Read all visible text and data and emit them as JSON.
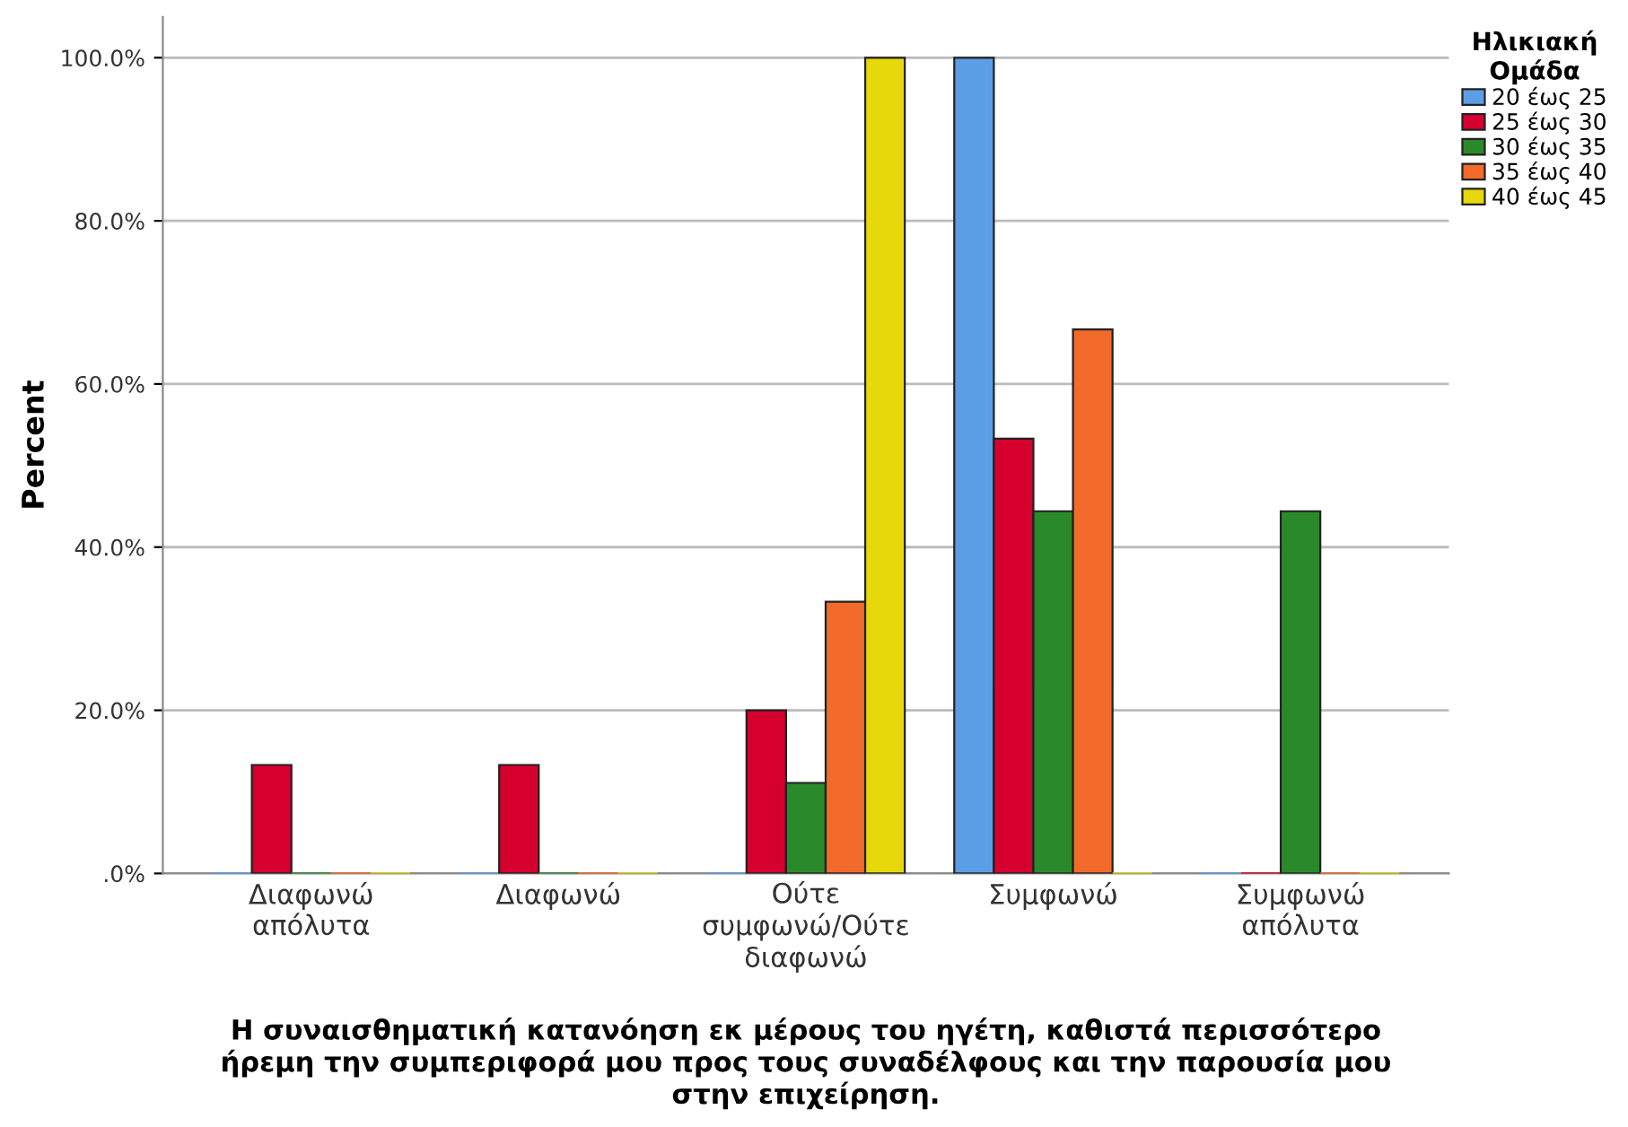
{
  "chart_data": {
    "type": "bar",
    "categories": [
      "Διαφωνώ\nαπόλυτα",
      "Διαφωνώ",
      "Ούτε\nσυμφωνώ/Ούτε\nδιαφωνώ",
      "Συμφωνώ",
      "Συμφωνώ\nαπόλυτα"
    ],
    "series": [
      {
        "name": "20 έως 25",
        "color": "#5b9ee6",
        "values": [
          0,
          0,
          0,
          100,
          0
        ]
      },
      {
        "name": "25 έως 30",
        "color": "#d6002f",
        "values": [
          13.3,
          13.3,
          20,
          53.3,
          0
        ]
      },
      {
        "name": "30 έως 35",
        "color": "#2a8a2a",
        "values": [
          0,
          0,
          11.1,
          44.4,
          44.4
        ]
      },
      {
        "name": "35 έως 40",
        "color": "#f26b2a",
        "values": [
          0,
          0,
          33.3,
          66.7,
          0
        ]
      },
      {
        "name": "40 έως 45",
        "color": "#e6d80a",
        "values": [
          0,
          0,
          100,
          0,
          0
        ]
      }
    ],
    "xlabel": "Η συναισθηματική κατανόηση εκ μέρους του ηγέτη, καθιστά περισσότερο\nήρεμη την συμπεριφορά μου προς τους συναδέλφους και την παρουσία μου\nστην επιχείρηση.",
    "ylabel": "Percent",
    "legend_title": "Ηλικιακή\nΟμάδα",
    "ylim": [
      0,
      105
    ],
    "yticks": [
      {
        "value": 0,
        "label": ".0%"
      },
      {
        "value": 20,
        "label": "20.0%"
      },
      {
        "value": 40,
        "label": "40.0%"
      },
      {
        "value": 60,
        "label": "60.0%"
      },
      {
        "value": 80,
        "label": "80.0%"
      },
      {
        "value": 100,
        "label": "100.0%"
      }
    ],
    "grid": "y",
    "legend": "top right"
  }
}
